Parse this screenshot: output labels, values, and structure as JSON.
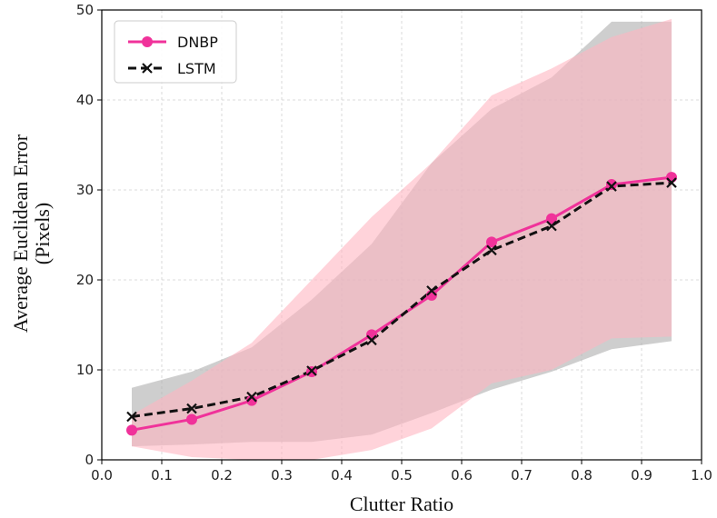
{
  "chart_data": {
    "type": "line",
    "title": "",
    "xlabel": "Clutter Ratio",
    "ylabel_line1": "Average Euclidean Error",
    "ylabel_line2": "(Pixels)",
    "xlim": [
      0.0,
      1.0
    ],
    "ylim": [
      0,
      50
    ],
    "xticks": [
      0.0,
      0.1,
      0.2,
      0.3,
      0.4,
      0.5,
      0.6,
      0.7,
      0.8,
      0.9,
      1.0
    ],
    "xtick_labels": [
      "0.0",
      "0.1",
      "0.2",
      "0.3",
      "0.4",
      "0.5",
      "0.6",
      "0.7",
      "0.8",
      "0.9",
      "1.0"
    ],
    "yticks": [
      0,
      10,
      20,
      30,
      40,
      50
    ],
    "ytick_labels": [
      "0",
      "10",
      "20",
      "30",
      "40",
      "50"
    ],
    "grid": true,
    "legend_position": "top-left",
    "x": [
      0.05,
      0.15,
      0.25,
      0.35,
      0.45,
      0.55,
      0.65,
      0.75,
      0.85,
      0.95
    ],
    "series": [
      {
        "name": "DNBP",
        "color": "#f0329a",
        "band_color": "#ffb6c1",
        "marker": "circle",
        "linestyle": "solid",
        "values": [
          3.3,
          4.5,
          6.6,
          9.8,
          13.9,
          18.3,
          24.2,
          26.8,
          30.6,
          31.4
        ],
        "lower": [
          1.5,
          0.3,
          0.0,
          0.0,
          1.1,
          3.5,
          8.5,
          10.0,
          13.5,
          13.7
        ],
        "upper": [
          5.0,
          8.8,
          13.0,
          20.0,
          27.0,
          33.0,
          40.5,
          43.5,
          47.0,
          49.0
        ]
      },
      {
        "name": "LSTM",
        "color": "#111111",
        "band_color": "#b3b3b3",
        "marker": "x",
        "linestyle": "dashed",
        "values": [
          4.8,
          5.7,
          7.0,
          9.9,
          13.3,
          18.8,
          23.3,
          26.0,
          30.4,
          30.8
        ],
        "lower": [
          1.5,
          1.7,
          2.0,
          2.0,
          2.8,
          5.2,
          7.8,
          9.8,
          12.3,
          13.2
        ],
        "upper": [
          8.0,
          9.8,
          12.5,
          17.8,
          24.0,
          33.0,
          39.0,
          42.5,
          48.7,
          48.7
        ]
      }
    ]
  }
}
